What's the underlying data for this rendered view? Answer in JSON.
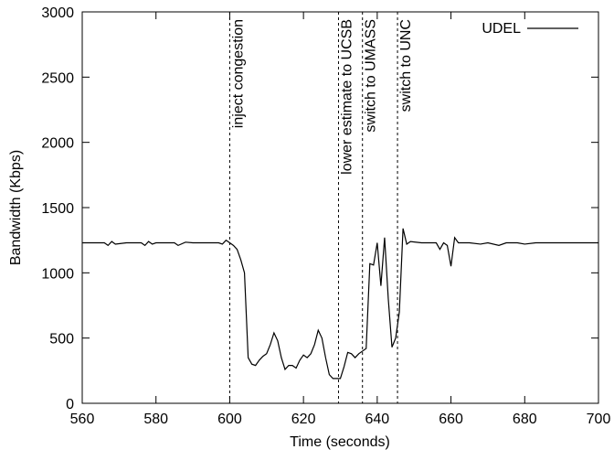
{
  "chart_data": {
    "type": "line",
    "xlabel": "Time (seconds)",
    "ylabel": "Bandwidth (Kbps)",
    "xlim": [
      560,
      700
    ],
    "ylim": [
      0,
      3000
    ],
    "xticks": [
      560,
      580,
      600,
      620,
      640,
      660,
      680,
      700
    ],
    "yticks": [
      0,
      500,
      1000,
      1500,
      2000,
      2500,
      3000
    ],
    "legend": "top-right",
    "annotations": [
      {
        "x": 600,
        "label": "inject congestion"
      },
      {
        "x": 629.5,
        "label": "lower estimate to UCSB"
      },
      {
        "x": 636,
        "label": "switch to UMASS"
      },
      {
        "x": 645.5,
        "label": "switch to UNC"
      }
    ],
    "x": [
      560,
      563,
      566,
      567,
      568,
      569,
      572,
      575,
      576,
      577,
      578,
      579,
      580,
      583,
      585,
      586,
      588,
      590,
      593,
      595,
      597,
      598,
      599,
      600,
      601,
      602,
      603,
      604,
      605,
      606,
      607,
      608,
      609,
      610,
      611,
      612,
      613,
      614,
      615,
      616,
      617,
      618,
      619,
      620,
      621,
      622,
      623,
      624,
      625,
      626,
      627,
      628,
      629,
      630,
      631,
      632,
      633,
      634,
      635,
      636,
      637,
      638,
      639,
      640,
      641,
      642,
      643,
      644,
      645,
      646,
      647,
      648,
      649,
      652,
      655,
      656,
      657,
      658,
      659,
      660,
      661,
      662,
      665,
      668,
      670,
      673,
      675,
      678,
      680,
      683,
      685,
      688,
      690,
      695,
      700
    ],
    "series": [
      {
        "name": "UDEL",
        "color": "#000000",
        "values": [
          1230,
          1230,
          1230,
          1210,
          1240,
          1220,
          1230,
          1230,
          1230,
          1210,
          1240,
          1220,
          1230,
          1230,
          1230,
          1210,
          1235,
          1230,
          1230,
          1230,
          1230,
          1220,
          1250,
          1230,
          1210,
          1180,
          1100,
          1000,
          350,
          300,
          290,
          330,
          360,
          380,
          450,
          540,
          480,
          350,
          260,
          290,
          290,
          270,
          330,
          370,
          350,
          380,
          450,
          560,
          500,
          350,
          220,
          190,
          190,
          190,
          280,
          390,
          380,
          350,
          380,
          400,
          420,
          1070,
          1060,
          1230,
          900,
          1270,
          800,
          430,
          500,
          700,
          1340,
          1220,
          1240,
          1230,
          1230,
          1230,
          1180,
          1230,
          1210,
          1050,
          1270,
          1230,
          1230,
          1220,
          1230,
          1210,
          1230,
          1230,
          1220,
          1230,
          1230,
          1230,
          1230,
          1230,
          1230
        ]
      }
    ]
  }
}
